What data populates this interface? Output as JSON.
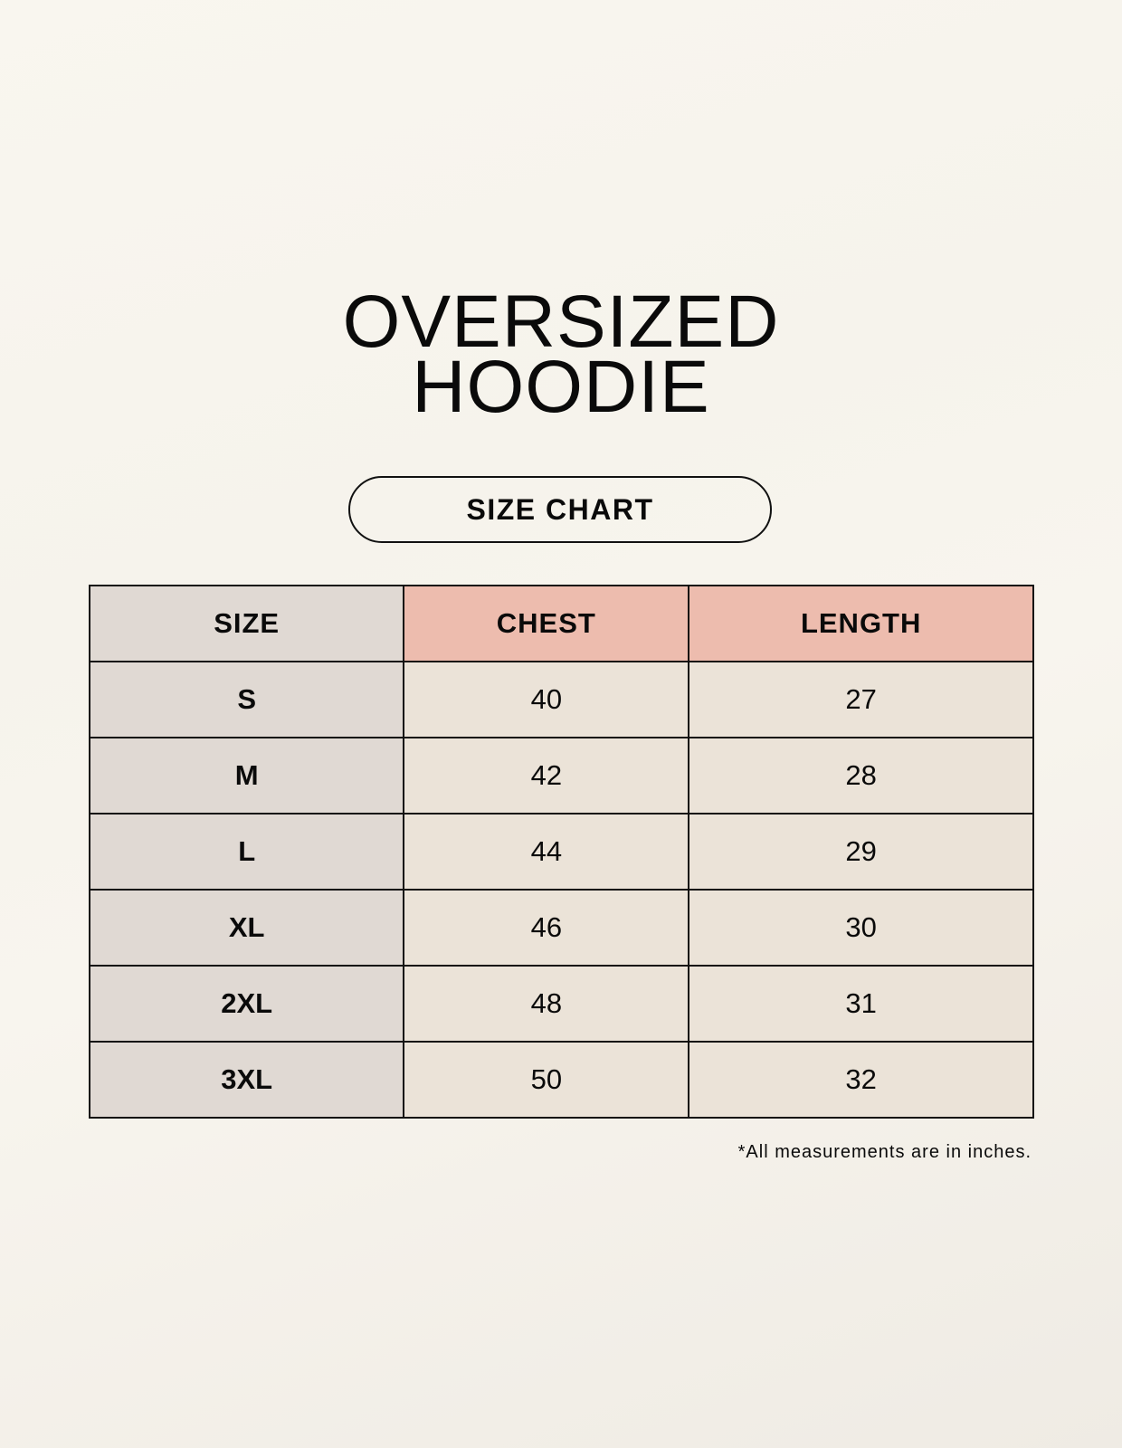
{
  "title": {
    "line1": "OVERSIZED",
    "line2": "HOODIE"
  },
  "subtitle": "SIZE CHART",
  "table": {
    "headers": [
      "SIZE",
      "CHEST",
      "LENGTH"
    ],
    "rows": [
      [
        "S",
        "40",
        "27"
      ],
      [
        "M",
        "42",
        "28"
      ],
      [
        "L",
        "44",
        "29"
      ],
      [
        "XL",
        "46",
        "30"
      ],
      [
        "2XL",
        "48",
        "31"
      ],
      [
        "3XL",
        "50",
        "32"
      ]
    ]
  },
  "footnote": "*All measurements are in inches.",
  "colors": {
    "size_column": "#e0d9d3",
    "header_accent": "#edbcae",
    "cell_bg": "#ebe3d8"
  }
}
